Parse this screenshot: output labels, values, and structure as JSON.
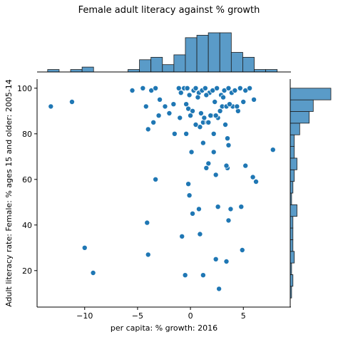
{
  "chart_data": {
    "type": "scatter",
    "title": "Female adult literacy against % growth",
    "xlabel": "per capita: % growth: 2016",
    "ylabel": "Adult literacy rate: Female: % ages 15 and older: 2005-14",
    "xlim": [
      -14.5,
      9.5
    ],
    "ylim": [
      4,
      104
    ],
    "xticks": [
      -10,
      -5,
      0,
      5
    ],
    "yticks": [
      20,
      40,
      60,
      80,
      100
    ],
    "marginals": {
      "top": "histogram",
      "right": "histogram"
    },
    "color": "#1f77b4",
    "hist_fill": "#5a9bc8",
    "x": [
      -13.2,
      -11.2,
      -9.2,
      -10.0,
      -5.5,
      -4.5,
      -3.7,
      -3.3,
      -2.9,
      -2.4,
      -1.6,
      -1.1,
      -0.9,
      -0.6,
      -0.3,
      -0.1,
      0.3,
      0.5,
      0.8,
      1.1,
      1.4,
      1.8,
      2.1,
      2.5,
      2.9,
      3.2,
      3.6,
      3.9,
      4.2,
      4.7,
      5.2,
      5.6,
      6.0,
      -0.4,
      0.7,
      1.5,
      2.3,
      3.1,
      4.0,
      5.0,
      -0.2,
      1.0,
      2.0,
      3.0,
      4.5,
      0.2,
      1.2,
      2.6,
      3.4,
      0.9,
      1.6,
      1.9,
      2.8,
      3.7,
      4.4,
      1.3,
      2.4,
      -4.2,
      -4.0,
      -3.5,
      -3.0,
      -2.0,
      -1.5,
      -1.0,
      0.0,
      0.5,
      1.7,
      2.2,
      3.3,
      3.5,
      3.6,
      7.8,
      -3.3,
      -0.4,
      0.1,
      1.2,
      1.7,
      2.2,
      3.5,
      5.2,
      5.9,
      6.2,
      -0.2,
      -0.1,
      1.5,
      2.4,
      3.4,
      4.8,
      0.2,
      0.8,
      2.6,
      3.8,
      -4.1,
      -0.8,
      0.9,
      3.6,
      -4.0,
      2.4,
      3.4,
      4.9,
      -0.5,
      1.2,
      2.7
    ],
    "y": [
      92,
      94,
      19,
      30,
      99,
      100,
      99,
      100,
      95,
      92,
      93,
      100,
      98,
      100,
      100,
      97,
      99,
      100,
      98,
      99,
      100,
      98,
      99,
      100,
      97,
      99,
      100,
      98,
      99,
      100,
      99,
      100,
      95,
      93,
      96,
      97,
      94,
      96,
      92,
      94,
      91,
      89,
      88,
      92,
      90,
      90,
      85,
      87,
      92,
      83,
      85,
      88,
      90,
      93,
      92,
      87,
      88,
      92,
      82,
      85,
      88,
      89,
      80,
      87,
      88,
      84,
      85,
      80,
      84,
      78,
      75,
      73,
      60,
      80,
      72,
      76,
      67,
      72,
      65,
      66,
      61,
      59,
      58,
      53,
      65,
      62,
      66,
      48,
      45,
      47,
      48,
      47,
      41,
      35,
      36,
      42,
      27,
      25,
      24,
      29,
      18,
      18,
      12
    ]
  }
}
